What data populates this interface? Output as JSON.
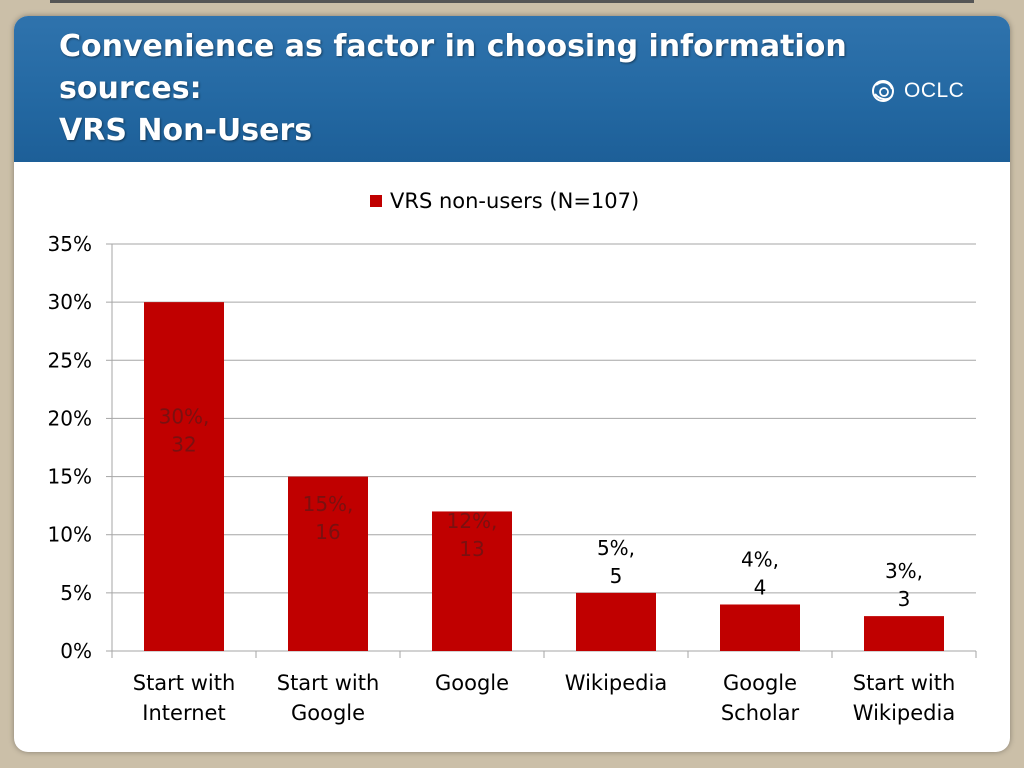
{
  "slide": {
    "title_lines": [
      "Convenience as factor in choosing information",
      "sources:",
      "VRS Non-Users"
    ],
    "logo_text": "OCLC"
  },
  "colors": {
    "header": "#2469a3",
    "bar": "#c00000",
    "grid": "#a6a6a6"
  },
  "chart_data": {
    "type": "bar",
    "categories": [
      [
        "Start with",
        "Internet"
      ],
      [
        "Start with",
        "Google"
      ],
      [
        "Google"
      ],
      [
        "Wikipedia"
      ],
      [
        "Google",
        "Scholar"
      ],
      [
        "Start with",
        "Wikipedia"
      ]
    ],
    "series": [
      {
        "name": "VRS non-users (N=107)",
        "values": [
          30,
          15,
          12,
          5,
          4,
          3
        ],
        "counts": [
          32,
          16,
          13,
          5,
          4,
          3
        ],
        "data_labels": [
          [
            "30%,",
            "32"
          ],
          [
            "15%,",
            "16"
          ],
          [
            "12%,",
            "13"
          ],
          [
            "5%,",
            "5"
          ],
          [
            "4%,",
            "4"
          ],
          [
            "3%,",
            "3"
          ]
        ]
      }
    ],
    "ylim": [
      0,
      35
    ],
    "yticks": [
      "0%",
      "5%",
      "10%",
      "15%",
      "20%",
      "25%",
      "30%",
      "35%"
    ],
    "grid": true,
    "legend": "top"
  }
}
